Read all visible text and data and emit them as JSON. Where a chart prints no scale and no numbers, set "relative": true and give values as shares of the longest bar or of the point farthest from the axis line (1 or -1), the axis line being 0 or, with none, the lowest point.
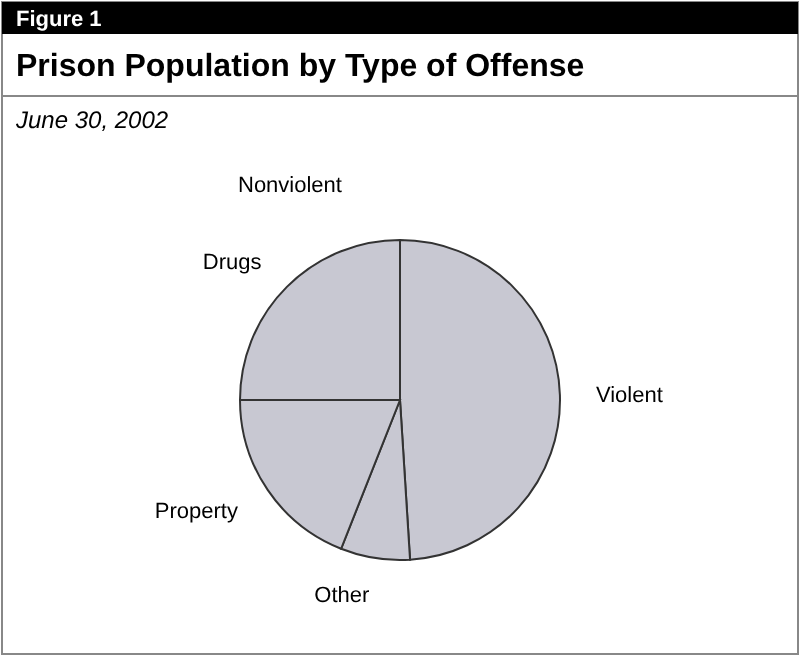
{
  "chart_data": {
    "type": "pie",
    "title": "Prison Population by Type of Offense",
    "subtitle": "June 30, 2002",
    "annotations": [
      "Figure 1",
      "Nonviolent"
    ],
    "categories": [
      "Violent",
      "Other",
      "Property",
      "Drugs"
    ],
    "values": [
      49,
      7,
      19,
      25
    ],
    "colors": [
      "#c8c8d2",
      "#c8c8d2",
      "#c8c8d2",
      "#c8c8d2"
    ],
    "relative": true
  }
}
